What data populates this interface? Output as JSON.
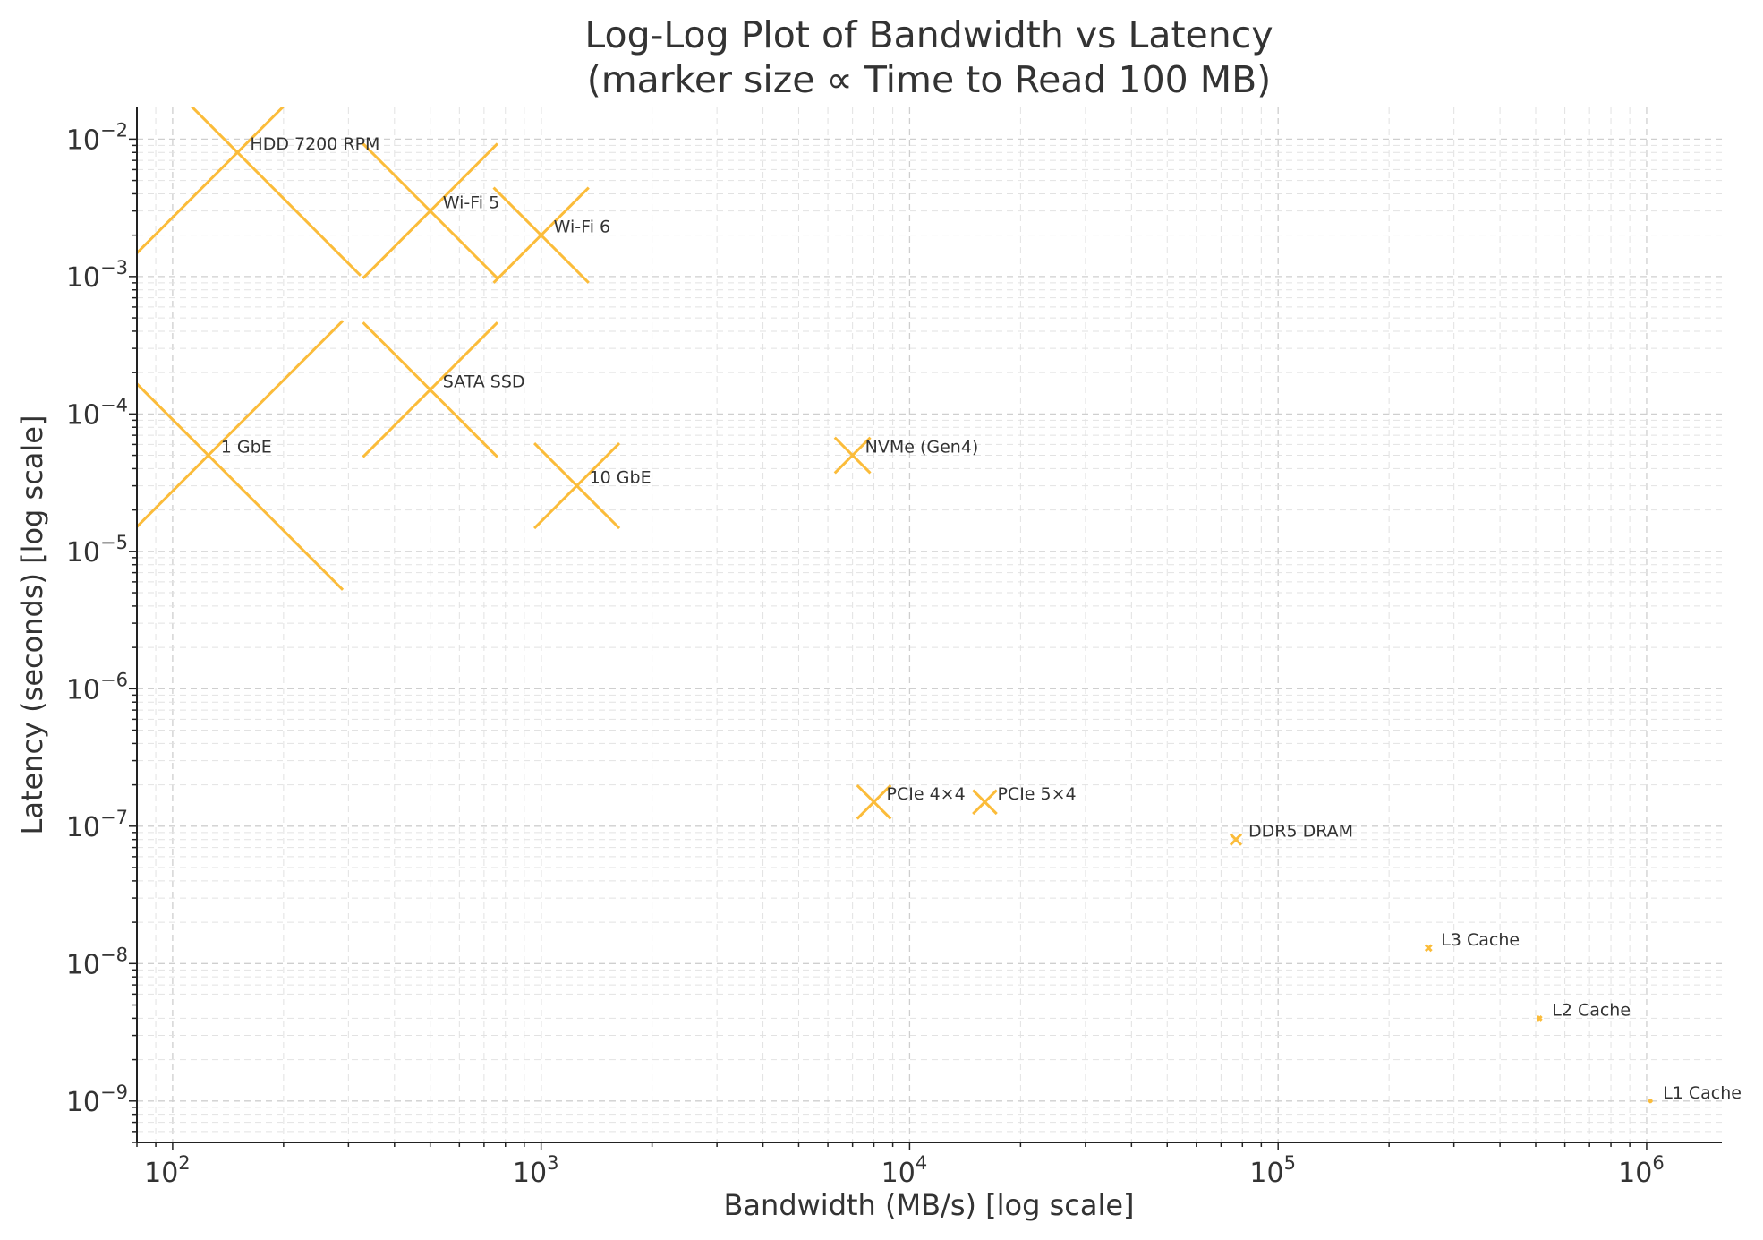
{
  "chart_data": {
    "type": "scatter",
    "title": "Log-Log Plot of Bandwidth vs Latency",
    "subtitle": "(marker size ∝ Time to Read 100 MB)",
    "xlabel": "Bandwidth (MB/s) [log scale]",
    "ylabel": "Latency (seconds) [log scale]",
    "xscale": "log",
    "yscale": "log",
    "xlim": [
      80,
      1600000
    ],
    "ylim": [
      5e-10,
      0.017
    ],
    "grid": true,
    "legend": "none",
    "marker": "x",
    "marker_color": "#FBBC3A",
    "x_ticks": [
      {
        "value": 100,
        "mant": "10",
        "exp": "2"
      },
      {
        "value": 1000,
        "mant": "10",
        "exp": "3"
      },
      {
        "value": 10000,
        "mant": "10",
        "exp": "4"
      },
      {
        "value": 100000,
        "mant": "10",
        "exp": "5"
      },
      {
        "value": 1000000,
        "mant": "10",
        "exp": "6"
      }
    ],
    "y_ticks": [
      {
        "value": 0.01,
        "mant": "10",
        "exp": "−2"
      },
      {
        "value": 0.001,
        "mant": "10",
        "exp": "−3"
      },
      {
        "value": 0.0001,
        "mant": "10",
        "exp": "−4"
      },
      {
        "value": 1e-05,
        "mant": "10",
        "exp": "−5"
      },
      {
        "value": 1e-06,
        "mant": "10",
        "exp": "−6"
      },
      {
        "value": 1e-07,
        "mant": "10",
        "exp": "−7"
      },
      {
        "value": 1e-08,
        "mant": "10",
        "exp": "−8"
      },
      {
        "value": 1e-09,
        "mant": "10",
        "exp": "−9"
      }
    ],
    "points": [
      {
        "label": "HDD 7200 RPM",
        "bandwidth": 150,
        "latency": 0.008,
        "time_to_read_100mb": 0.67
      },
      {
        "label": "Wi-Fi 5",
        "bandwidth": 500,
        "latency": 0.003,
        "time_to_read_100mb": 0.2
      },
      {
        "label": "Wi-Fi 6",
        "bandwidth": 1000,
        "latency": 0.002,
        "time_to_read_100mb": 0.1
      },
      {
        "label": "SATA SSD",
        "bandwidth": 500,
        "latency": 0.00015,
        "time_to_read_100mb": 0.2
      },
      {
        "label": "1 GbE",
        "bandwidth": 125,
        "latency": 5e-05,
        "time_to_read_100mb": 0.8
      },
      {
        "label": "10 GbE",
        "bandwidth": 1250,
        "latency": 3e-05,
        "time_to_read_100mb": 0.08
      },
      {
        "label": "NVMe (Gen4)",
        "bandwidth": 7000,
        "latency": 5e-05,
        "time_to_read_100mb": 0.014
      },
      {
        "label": "PCIe 4×4",
        "bandwidth": 8000,
        "latency": 1.5e-07,
        "time_to_read_100mb": 0.0125
      },
      {
        "label": "PCIe 5×4",
        "bandwidth": 16000,
        "latency": 1.5e-07,
        "time_to_read_100mb": 0.00625
      },
      {
        "label": "DDR5 DRAM",
        "bandwidth": 76800,
        "latency": 8e-08,
        "time_to_read_100mb": 0.0013
      },
      {
        "label": "L3 Cache",
        "bandwidth": 256000,
        "latency": 1.3e-08,
        "time_to_read_100mb": 0.00039
      },
      {
        "label": "L2 Cache",
        "bandwidth": 512000,
        "latency": 4e-09,
        "time_to_read_100mb": 0.0002
      },
      {
        "label": "L1 Cache",
        "bandwidth": 1024000,
        "latency": 1e-09,
        "time_to_read_100mb": 0.0001
      }
    ]
  }
}
